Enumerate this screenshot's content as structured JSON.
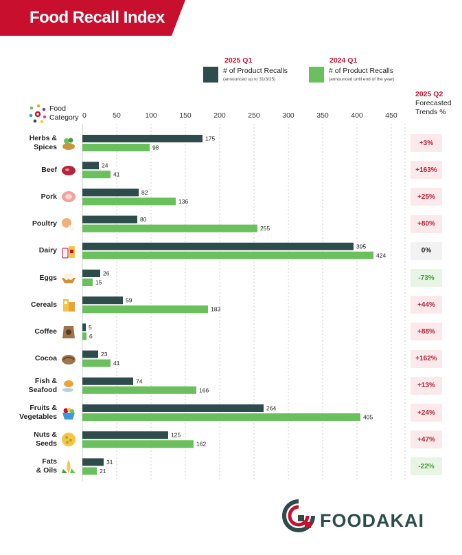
{
  "header": {
    "title": "Food Recall Index"
  },
  "legend": {
    "series_a": {
      "year": "2025 Q1",
      "label": "# of Product Recalls",
      "note": "(announced up to 31/3/25)"
    },
    "series_b": {
      "year": "2024 Q1",
      "label": "# of Product Recalls",
      "note": "(announced until end of the year)"
    }
  },
  "category_header": {
    "line1": "Food",
    "line2": "Category"
  },
  "forecast_header": {
    "year": "2025 Q2",
    "line1": "Forecasted",
    "line2": "Trends %"
  },
  "brand": {
    "name": "FOODAKAI"
  },
  "colors": {
    "series_a": "#2f4c4d",
    "series_b": "#6ac05c",
    "accent": "#c8102e",
    "positive": "#b5243a",
    "negative": "#4c9a3c",
    "neutral": "#222222"
  },
  "chart_data": {
    "type": "bar",
    "orientation": "horizontal",
    "categories": [
      "Herbs & Spices",
      "Beef",
      "Pork",
      "Poultry",
      "Dairy",
      "Eggs",
      "Cereals",
      "Coffee",
      "Cocoa",
      "Fish & Seafood",
      "Fruits & Vegetables",
      "Nuts & Seeds",
      "Fats & Oils"
    ],
    "label_lines": [
      [
        "Herbs &",
        "Spices"
      ],
      [
        "Beef"
      ],
      [
        "Pork"
      ],
      [
        "Poultry"
      ],
      [
        "Dairy"
      ],
      [
        "Eggs"
      ],
      [
        "Cereals"
      ],
      [
        "Coffee"
      ],
      [
        "Cocoa"
      ],
      [
        "Fish &",
        "Seafood"
      ],
      [
        "Fruits &",
        "Vegetables"
      ],
      [
        "Nuts &",
        "Seeds"
      ],
      [
        "Fats",
        "& Oils"
      ]
    ],
    "series": [
      {
        "name": "2025 Q1",
        "values": [
          175,
          24,
          82,
          80,
          395,
          26,
          59,
          5,
          23,
          74,
          264,
          125,
          31
        ]
      },
      {
        "name": "2024 Q1",
        "values": [
          98,
          41,
          136,
          255,
          424,
          15,
          183,
          6,
          41,
          166,
          405,
          162,
          21
        ]
      }
    ],
    "forecast": [
      "+3%",
      "+163%",
      "+25%",
      "+80%",
      "0%",
      "-73%",
      "+44%",
      "+88%",
      "+162%",
      "+13%",
      "+24%",
      "+47%",
      "-22%"
    ],
    "forecast_trend": [
      "up",
      "up",
      "up",
      "up",
      "flat",
      "down",
      "up",
      "up",
      "up",
      "up",
      "up",
      "up",
      "down"
    ],
    "icons": [
      "herbs-spices-icon",
      "beef-icon",
      "pork-icon",
      "poultry-icon",
      "dairy-icon",
      "eggs-icon",
      "cereals-icon",
      "coffee-icon",
      "cocoa-icon",
      "fish-seafood-icon",
      "fruits-vegetables-icon",
      "nuts-seeds-icon",
      "fats-oils-icon"
    ],
    "xticks": [
      0,
      50,
      100,
      150,
      200,
      250,
      300,
      350,
      400,
      450
    ],
    "xlim": [
      0,
      450
    ],
    "grid": true,
    "legend_position": "top"
  }
}
